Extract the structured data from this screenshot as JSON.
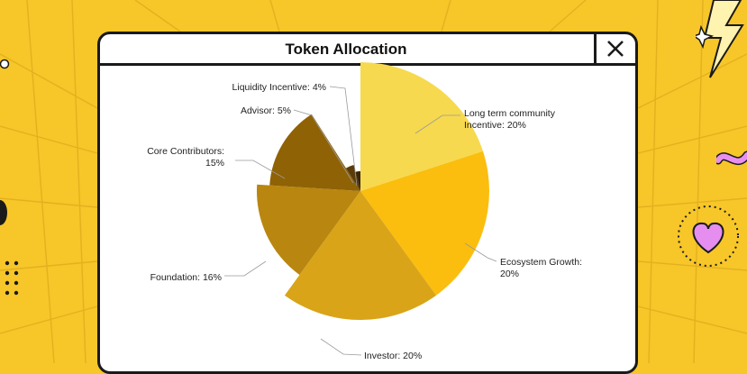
{
  "window": {
    "title": "Token Allocation",
    "close_icon": "close-icon"
  },
  "colors": {
    "background": "#f7c629",
    "border": "#1a1a1a"
  },
  "chart_data": {
    "type": "pie",
    "title": "Token Allocation",
    "slices": [
      {
        "label_lines": [
          "Long term community",
          "Incentive: 20%"
        ],
        "value": 20,
        "color": "#f6d94e",
        "radius": 143
      },
      {
        "label_lines": [
          "Ecosystem Growth:",
          "20%"
        ],
        "value": 20,
        "color": "#fbbe0e",
        "radius": 143
      },
      {
        "label_lines": [
          "Investor: 20%"
        ],
        "value": 20,
        "color": "#d9a418",
        "radius": 143
      },
      {
        "label_lines": [
          "Foundation: 16%"
        ],
        "value": 16,
        "color": "#b9860f",
        "radius": 115
      },
      {
        "label_lines": [
          "Core Contributors:",
          "15%"
        ],
        "value": 15,
        "color": "#8f6205",
        "radius": 101
      },
      {
        "label_lines": [
          "Advisor: 5%"
        ],
        "value": 5,
        "color": "#5a3b0a",
        "radius": 30
      },
      {
        "label_lines": [
          "Liquidity Incentive: 4%"
        ],
        "value": 4,
        "color": "#3a2508",
        "radius": 22
      }
    ]
  }
}
